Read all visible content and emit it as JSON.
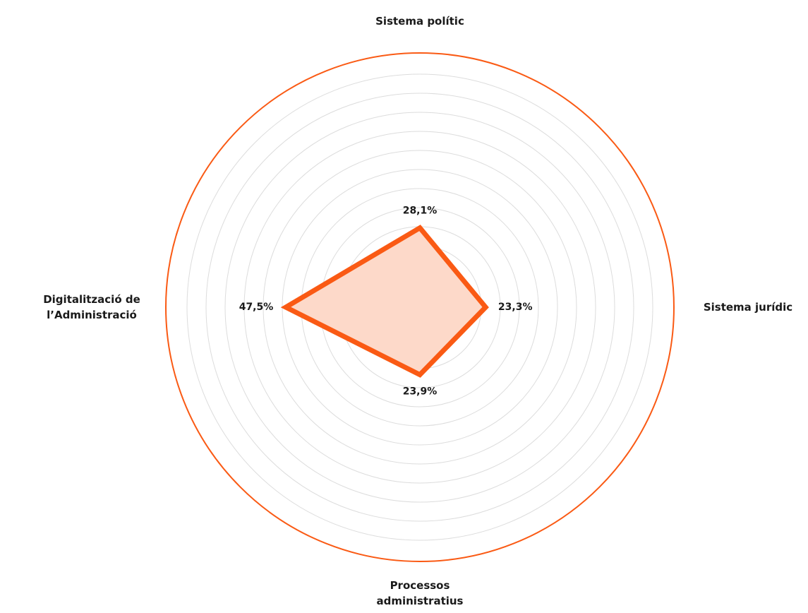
{
  "chart_data": {
    "type": "radar",
    "categories": [
      "Sistema polític",
      "Sistema jurídic",
      "Processos administratius",
      "Digitalització de l’Administració"
    ],
    "values": [
      28.1,
      23.3,
      23.9,
      47.5
    ],
    "value_labels": [
      "28,1%",
      "23,3%",
      "23,9%",
      "47,5%"
    ],
    "ylim": [
      0,
      90
    ],
    "color": "#fa5a14",
    "fill": "#fdd9c9",
    "grid": true
  }
}
